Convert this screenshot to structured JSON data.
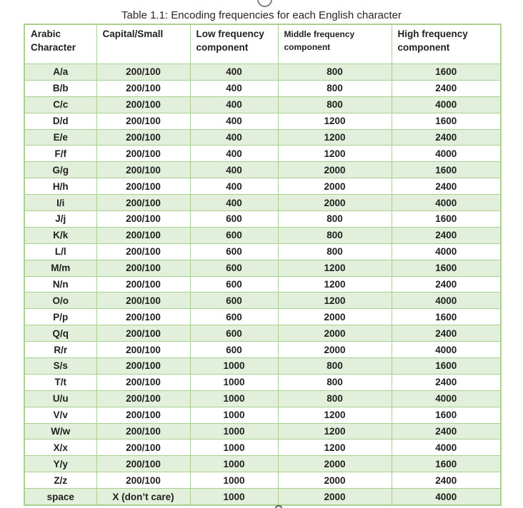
{
  "page": {
    "title": "Table 1.1: Encoding frequencies for each English character"
  },
  "decorations": {
    "top_glyph_icon": "partial-circle-descender",
    "bottom_glyph_icon": "partial-letter-tip"
  },
  "colors": {
    "row_stripe": "#e2efda",
    "table_border": "#a9d08e",
    "text": "#1f1f1f"
  },
  "table": {
    "columns": [
      {
        "key": "arabic-character",
        "label": "Arabic Character"
      },
      {
        "key": "capital-small",
        "label": "Capital/Small"
      },
      {
        "key": "low-frequency-component",
        "label": "Low frequency component"
      },
      {
        "key": "middle-frequency-component",
        "label": "Middle frequency component"
      },
      {
        "key": "high-frequency-component",
        "label": "High frequency component"
      }
    ],
    "rows": [
      [
        "A/a",
        "200/100",
        "400",
        "800",
        "1600"
      ],
      [
        "B/b",
        "200/100",
        "400",
        "800",
        "2400"
      ],
      [
        "C/c",
        "200/100",
        "400",
        "800",
        "4000"
      ],
      [
        "D/d",
        "200/100",
        "400",
        "1200",
        "1600"
      ],
      [
        "E/e",
        "200/100",
        "400",
        "1200",
        "2400"
      ],
      [
        "F/f",
        "200/100",
        "400",
        "1200",
        "4000"
      ],
      [
        "G/g",
        "200/100",
        "400",
        "2000",
        "1600"
      ],
      [
        "H/h",
        "200/100",
        "400",
        "2000",
        "2400"
      ],
      [
        "I/i",
        "200/100",
        "400",
        "2000",
        "4000"
      ],
      [
        "J/j",
        "200/100",
        "600",
        "800",
        "1600"
      ],
      [
        "K/k",
        "200/100",
        "600",
        "800",
        "2400"
      ],
      [
        "L/l",
        "200/100",
        "600",
        "800",
        "4000"
      ],
      [
        "M/m",
        "200/100",
        "600",
        "1200",
        "1600"
      ],
      [
        "N/n",
        "200/100",
        "600",
        "1200",
        "2400"
      ],
      [
        "O/o",
        "200/100",
        "600",
        "1200",
        "4000"
      ],
      [
        "P/p",
        "200/100",
        "600",
        "2000",
        "1600"
      ],
      [
        "Q/q",
        "200/100",
        "600",
        "2000",
        "2400"
      ],
      [
        "R/r",
        "200/100",
        "600",
        "2000",
        "4000"
      ],
      [
        "S/s",
        "200/100",
        "1000",
        "800",
        "1600"
      ],
      [
        "T/t",
        "200/100",
        "1000",
        "800",
        "2400"
      ],
      [
        "U/u",
        "200/100",
        "1000",
        "800",
        "4000"
      ],
      [
        "V/v",
        "200/100",
        "1000",
        "1200",
        "1600"
      ],
      [
        "W/w",
        "200/100",
        "1000",
        "1200",
        "2400"
      ],
      [
        "X/x",
        "200/100",
        "1000",
        "1200",
        "4000"
      ],
      [
        "Y/y",
        "200/100",
        "1000",
        "2000",
        "1600"
      ],
      [
        "Z/z",
        "200/100",
        "1000",
        "2000",
        "2400"
      ],
      [
        "space",
        "X (don’t care)",
        "1000",
        "2000",
        "4000"
      ]
    ]
  }
}
